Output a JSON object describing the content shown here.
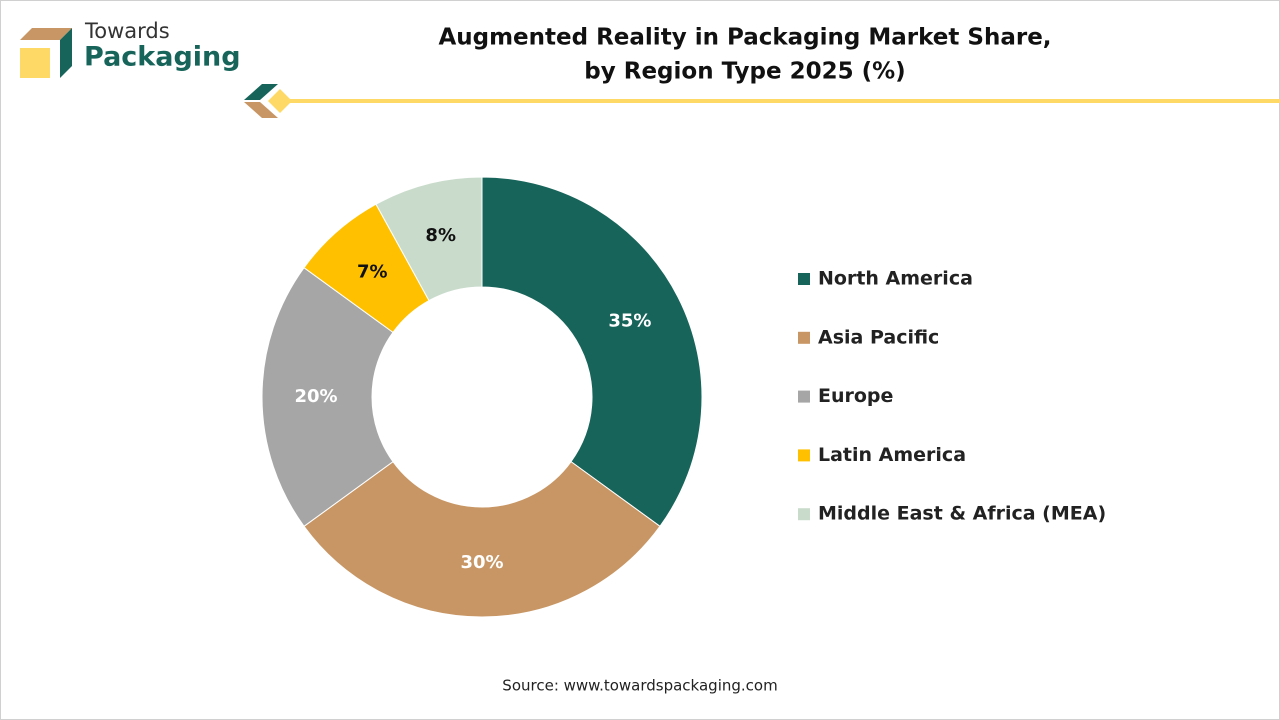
{
  "logo": {
    "line1": "Towards",
    "line2": "Packaging"
  },
  "chart_data": {
    "type": "donut",
    "title": [
      "Augmented Reality in Packaging Market Share,",
      "by Region Type 2025 (%)"
    ],
    "categories": [
      "North America",
      "Asia Pacific",
      "Europe",
      "Latin America",
      "Middle East & Africa (MEA)"
    ],
    "values": [
      35,
      30,
      20,
      7,
      8
    ],
    "value_labels": [
      "35%",
      "30%",
      "20%",
      "7%",
      "8%"
    ],
    "colors": [
      "#17645a",
      "#c89664",
      "#a6a6a6",
      "#ffc000",
      "#c9dccc"
    ],
    "legend": "right"
  },
  "source": "Source: www.towardspackaging.com"
}
